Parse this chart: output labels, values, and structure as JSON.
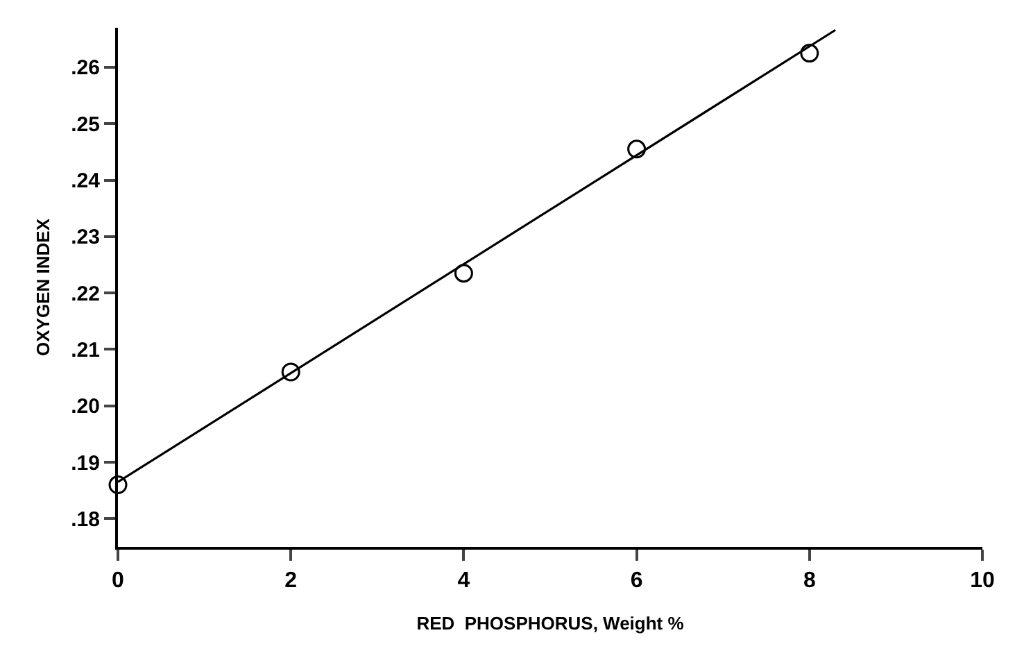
{
  "chart_data": {
    "type": "scatter",
    "xlabel": "RED  PHOSPHORUS, Weight %",
    "ylabel": "OXYGEN INDEX",
    "series": [
      {
        "type": "scatter",
        "x": [
          0,
          2,
          4,
          6,
          8
        ],
        "values": [
          0.186,
          0.206,
          0.2235,
          0.2455,
          0.2625
        ],
        "color": "#000000",
        "marker": "circle"
      },
      {
        "type": "line",
        "x": [
          0,
          8.3
        ],
        "values": [
          0.1865,
          0.2666
        ],
        "color": "#000000",
        "marker": "none",
        "line_style": "solid"
      }
    ],
    "xlim": [
      0,
      10
    ],
    "xticks": [
      0,
      2,
      4,
      6,
      8,
      10
    ],
    "ylim": [
      0.175,
      0.267
    ],
    "yticks": [
      {
        "value": 0.18,
        "label": ".18"
      },
      {
        "value": 0.19,
        "label": ".19"
      },
      {
        "value": 0.2,
        "label": ".20"
      },
      {
        "value": 0.21,
        "label": ".21"
      },
      {
        "value": 0.22,
        "label": ".22"
      },
      {
        "value": 0.23,
        "label": ".23"
      },
      {
        "value": 0.24,
        "label": ".24"
      },
      {
        "value": 0.25,
        "label": ".25"
      },
      {
        "value": 0.26,
        "label": ".26"
      }
    ],
    "grid": false
  }
}
